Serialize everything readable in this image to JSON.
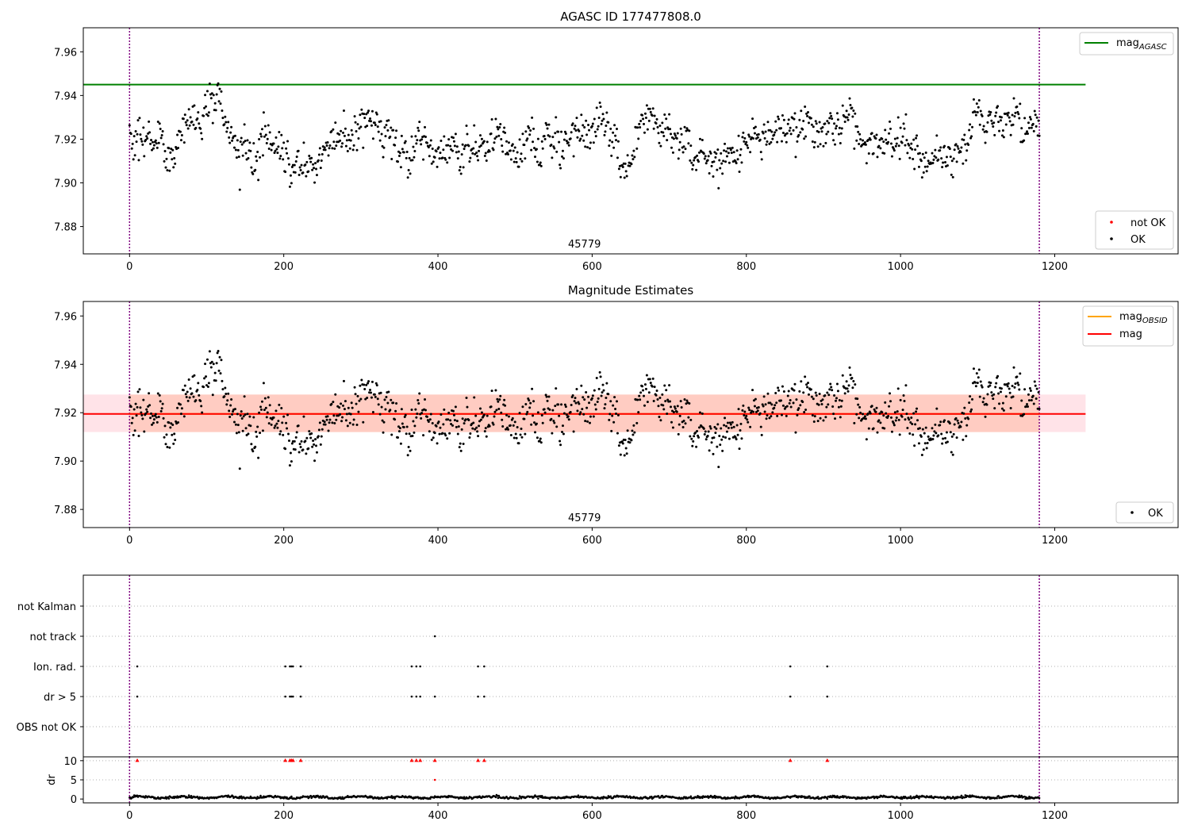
{
  "colors": {
    "agasc_line": "#008000",
    "obsid_line": "#FFA500",
    "mag_line": "#FF0000",
    "band_fill": "#FFC0CB",
    "band_fill_obsid": "#FFA07A",
    "marker_ok": "#000000",
    "marker_not_ok": "#FF0000",
    "obsid_boundary": "#800080",
    "grid": "#b0b0b0"
  },
  "chart_data": [
    {
      "id": "agasc",
      "type": "scatter",
      "title": "AGASC ID 177477808.0",
      "xlim": [
        -60,
        1360
      ],
      "ylim": [
        7.8675,
        7.971
      ],
      "x_ticks": [
        0,
        200,
        400,
        600,
        800,
        1000,
        1200
      ],
      "y_ticks": [
        7.88,
        7.9,
        7.92,
        7.94,
        7.96
      ],
      "y_tick_labels": [
        "7.88",
        "7.90",
        "7.92",
        "7.94",
        "7.96"
      ],
      "obsid_label": "45779",
      "obsid_bounds": [
        0,
        1180
      ],
      "hlines": [
        {
          "name": "mag_AGASC",
          "legend_base": "mag",
          "legend_sub": "AGASC",
          "y": 7.945,
          "x_range": [
            -60,
            1240
          ],
          "color_key": "agasc_line"
        }
      ],
      "legend_upper": "top-right",
      "legend_lower_items": [
        {
          "label": "not OK",
          "color_key": "marker_not_ok"
        },
        {
          "label": "OK",
          "color_key": "marker_ok"
        }
      ],
      "legend_lower": "bottom-right",
      "points_ok": {
        "n": 1180,
        "mean": 7.9195,
        "spread": 0.008,
        "description": "dense noisy time series, x from 0 to 1180"
      },
      "points_not_ok": []
    },
    {
      "id": "mag-estimates",
      "type": "scatter",
      "title": "Magnitude Estimates",
      "xlim": [
        -60,
        1360
      ],
      "ylim": [
        7.8725,
        7.966
      ],
      "x_ticks": [
        0,
        200,
        400,
        600,
        800,
        1000,
        1200
      ],
      "y_ticks": [
        7.88,
        7.9,
        7.92,
        7.94,
        7.96
      ],
      "y_tick_labels": [
        "7.88",
        "7.90",
        "7.92",
        "7.94",
        "7.96"
      ],
      "obsid_label": "45779",
      "obsid_bounds": [
        0,
        1180
      ],
      "hlines": [
        {
          "name": "mag_OBSID",
          "legend_base": "mag",
          "legend_sub": "OBSID",
          "y": 7.9195,
          "x_range": [
            0,
            1180
          ],
          "color_key": "obsid_line"
        },
        {
          "name": "mag",
          "legend_base": "mag",
          "legend_sub": "",
          "y": 7.9195,
          "x_range": [
            -60,
            1240
          ],
          "color_key": "mag_line"
        }
      ],
      "bands": [
        {
          "y_low": 7.912,
          "y_high": 7.9275,
          "x_range": [
            -60,
            1240
          ],
          "color_key": "band_fill"
        },
        {
          "y_low": 7.912,
          "y_high": 7.9275,
          "x_range": [
            0,
            1180
          ],
          "color_key": "band_fill_obsid"
        }
      ],
      "legend_lower_items": [
        {
          "label": "OK",
          "color_key": "marker_ok"
        }
      ],
      "legend_upper": "top-right",
      "legend_lower": "bottom-right"
    },
    {
      "id": "flags",
      "type": "scatter",
      "xlim": [
        -60,
        1360
      ],
      "categories": [
        "OBS not OK",
        "dr > 5",
        "Ion. rad.",
        "not track",
        "not Kalman"
      ],
      "obsid_bounds": [
        0,
        1180
      ],
      "flag_points": {
        "dr > 5": [
          10,
          202,
          208,
          210,
          212,
          222,
          366,
          372,
          377,
          396,
          452,
          460,
          857,
          905
        ],
        "Ion. rad.": [
          10,
          202,
          208,
          210,
          212,
          222,
          366,
          372,
          377,
          452,
          460,
          857,
          905
        ],
        "not track": [
          396
        ],
        "not Kalman": [],
        "OBS not OK": []
      }
    },
    {
      "id": "dr",
      "type": "scatter",
      "ylabel": "dr",
      "xlim": [
        -60,
        1360
      ],
      "ylim": [
        -1,
        11
      ],
      "x_ticks": [
        0,
        200,
        400,
        600,
        800,
        1000,
        1200
      ],
      "y_ticks": [
        0,
        5,
        10
      ],
      "y_tick_labels": [
        "0",
        "5",
        "10"
      ],
      "obsid_bounds": [
        0,
        1180
      ],
      "clipped_points_x": [
        10,
        202,
        208,
        210,
        212,
        222,
        366,
        372,
        377,
        396,
        452,
        460,
        857,
        905
      ],
      "extra_points": [
        {
          "x": 396,
          "y": 5
        }
      ],
      "baseline": {
        "mean": 0.5,
        "spread": 0.3
      }
    }
  ]
}
